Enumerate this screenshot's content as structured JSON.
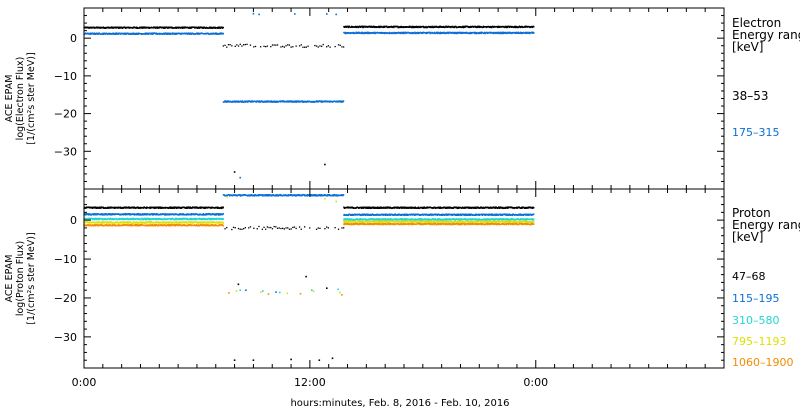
{
  "chart_data": [
    {
      "type": "scatter",
      "panel": "electron",
      "ylabel_lines": [
        "ACE EPAM",
        "log(Electron Flux)",
        "[1/(cm²s ster MeV)]"
      ],
      "legend_title_lines": [
        "Electron",
        "Energy range",
        "[keV]"
      ],
      "ylim": [
        -40,
        8
      ],
      "yticks": [
        0,
        -10,
        -20,
        -30
      ],
      "yticklabels": [
        "0",
        "−10",
        "−20",
        "−30"
      ],
      "series": [
        {
          "name": "38–53",
          "color": "#000000",
          "segments": [
            {
              "x": [
                0.0,
                7.4
              ],
              "y": 2.8
            },
            {
              "x": [
                7.4,
                13.8
              ],
              "y": -2.0,
              "sparse": true
            },
            {
              "x": [
                13.8,
                23.9
              ],
              "y": 3.0
            }
          ],
          "outliers": [
            [
              8.0,
              -35.5
            ],
            [
              12.8,
              -33.5
            ]
          ]
        },
        {
          "name": "175–315",
          "color": "#0a6fd6",
          "segments": [
            {
              "x": [
                0.0,
                7.4
              ],
              "y": 1.2
            },
            {
              "x": [
                7.4,
                13.8
              ],
              "y": -16.8
            },
            {
              "x": [
                13.8,
                23.9
              ],
              "y": 1.4
            }
          ],
          "outliers": [
            [
              9.0,
              6.5
            ],
            [
              9.3,
              6.3
            ],
            [
              11.2,
              6.4
            ],
            [
              12.9,
              6.4
            ],
            [
              13.4,
              6.3
            ],
            [
              8.3,
              -37.0
            ]
          ]
        }
      ]
    },
    {
      "type": "scatter",
      "panel": "proton",
      "ylabel_lines": [
        "ACE EPAM",
        "log(Proton Flux)",
        "[1/(cm²s ster MeV)]"
      ],
      "legend_title_lines": [
        "Proton",
        "Energy range",
        "[keV]"
      ],
      "ylim": [
        -38,
        8
      ],
      "yticks": [
        0,
        -10,
        -20,
        -30
      ],
      "yticklabels": [
        "0",
        "−10",
        "−20",
        "−30"
      ],
      "xticks": [
        0,
        12,
        24
      ],
      "xticklabels": [
        "0:00",
        "12:00",
        "0:00"
      ],
      "xlabel": "hours:minutes,  Feb.  8, 2016 - Feb. 10, 2016",
      "series": [
        {
          "name": "47–68",
          "color": "#000000",
          "segments": [
            {
              "x": [
                0.0,
                7.4
              ],
              "y": 3.2
            },
            {
              "x": [
                7.4,
                13.8
              ],
              "y": -2.0,
              "sparse": true
            },
            {
              "x": [
                13.8,
                23.9
              ],
              "y": 3.2
            }
          ],
          "outliers": [
            [
              8.2,
              -16.5
            ],
            [
              11.8,
              -14.5
            ],
            [
              12.9,
              -17.5
            ],
            [
              8.0,
              -36.0
            ],
            [
              9.0,
              -36.0
            ],
            [
              11.0,
              -35.8
            ],
            [
              12.5,
              -36.0
            ],
            [
              13.2,
              -35.5
            ]
          ]
        },
        {
          "name": "115–195",
          "color": "#0a6fd6",
          "segments": [
            {
              "x": [
                0.0,
                7.4
              ],
              "y": 1.5
            },
            {
              "x": [
                7.4,
                13.8
              ],
              "y": 6.4
            },
            {
              "x": [
                13.8,
                23.9
              ],
              "y": 1.4
            }
          ],
          "outliers": [
            [
              8.6,
              -18.0
            ],
            [
              10.2,
              -18.5
            ]
          ]
        },
        {
          "name": "310–580",
          "color": "#22d5d5",
          "segments": [
            {
              "x": [
                0.0,
                7.4
              ],
              "y": 0.3
            },
            {
              "x": [
                13.8,
                23.9
              ],
              "y": 0.2
            }
          ],
          "outliers": [
            [
              8.3,
              -18.0
            ],
            [
              9.5,
              -18.2
            ],
            [
              10.4,
              -18.6
            ],
            [
              12.1,
              -18.0
            ],
            [
              13.5,
              -17.8
            ]
          ]
        },
        {
          "name": "795–1193",
          "color": "#dede00",
          "segments": [
            {
              "x": [
                0.0,
                7.4
              ],
              "y": -0.6
            },
            {
              "x": [
                13.8,
                23.9
              ],
              "y": -0.4
            }
          ],
          "outliers": [
            [
              7.6,
              6.0
            ],
            [
              12.8,
              5.5
            ],
            [
              13.4,
              4.8
            ],
            [
              8.1,
              -18.2
            ],
            [
              9.4,
              -18.5
            ],
            [
              10.8,
              -18.8
            ],
            [
              12.2,
              -18.3
            ],
            [
              13.6,
              -18.6
            ]
          ]
        },
        {
          "name": "1060–1900",
          "color": "#f28c00",
          "segments": [
            {
              "x": [
                0.0,
                7.4
              ],
              "y": -1.3
            },
            {
              "x": [
                13.8,
                23.9
              ],
              "y": -1.0
            }
          ],
          "outliers": [
            [
              7.7,
              -18.7
            ],
            [
              9.8,
              -19.0
            ],
            [
              11.5,
              -18.9
            ],
            [
              13.7,
              -19.2
            ]
          ]
        }
      ]
    }
  ]
}
